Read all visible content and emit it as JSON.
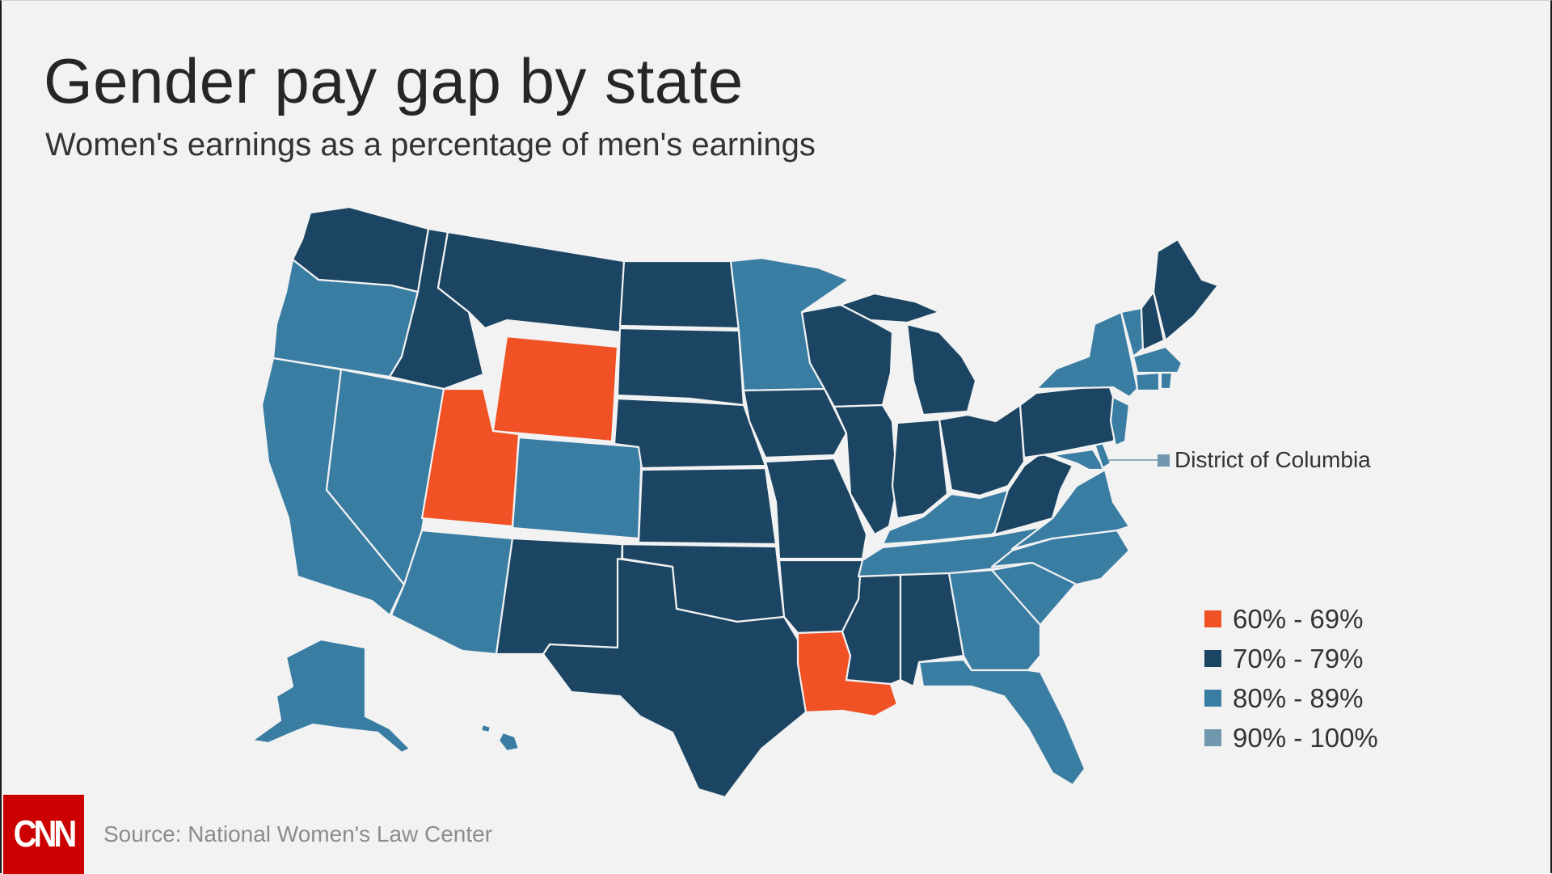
{
  "title": "Gender pay gap by state",
  "subtitle": "Women's earnings as a percentage of men's earnings",
  "colors": {
    "background": "#f2f2f2",
    "range_60_69": "#f05125",
    "range_70_79": "#1b4563",
    "range_80_89": "#3a7da3",
    "range_90_100": "#6f98ae",
    "cnn_red": "#cc0000"
  },
  "legend": [
    {
      "label": "60% - 69%",
      "color": "#f05125"
    },
    {
      "label": "70% - 79%",
      "color": "#1b4563"
    },
    {
      "label": "80% - 89%",
      "color": "#3a7da3"
    },
    {
      "label": "90% - 100%",
      "color": "#6f98ae"
    }
  ],
  "dc_callout": {
    "label": "District of Columbia",
    "range": "90% - 100%"
  },
  "states": {
    "WA": "70% - 79%",
    "OR": "80% - 89%",
    "CA": "80% - 89%",
    "NV": "80% - 89%",
    "ID": "70% - 79%",
    "MT": "70% - 79%",
    "WY": "60% - 69%",
    "UT": "60% - 69%",
    "AZ": "80% - 89%",
    "CO": "80% - 89%",
    "NM": "70% - 79%",
    "ND": "70% - 79%",
    "SD": "70% - 79%",
    "NE": "70% - 79%",
    "KS": "70% - 79%",
    "OK": "70% - 79%",
    "TX": "70% - 79%",
    "MN": "80% - 89%",
    "IA": "70% - 79%",
    "MO": "70% - 79%",
    "AR": "70% - 79%",
    "LA": "60% - 69%",
    "WI": "70% - 79%",
    "IL": "70% - 79%",
    "MI": "70% - 79%",
    "IN": "70% - 79%",
    "OH": "70% - 79%",
    "KY": "80% - 89%",
    "TN": "80% - 89%",
    "MS": "70% - 79%",
    "AL": "70% - 79%",
    "GA": "80% - 89%",
    "FL": "80% - 89%",
    "SC": "80% - 89%",
    "NC": "80% - 89%",
    "VA": "80% - 89%",
    "WV": "70% - 79%",
    "PA": "70% - 79%",
    "NY": "80% - 89%",
    "VT": "80% - 89%",
    "NH": "70% - 79%",
    "ME": "70% - 79%",
    "MA": "80% - 89%",
    "RI": "80% - 89%",
    "CT": "80% - 89%",
    "NJ": "80% - 89%",
    "DE": "80% - 89%",
    "MD": "80% - 89%",
    "AK": "80% - 89%",
    "HI": "80% - 89%"
  },
  "source": "Source: National Women's Law Center",
  "logo": "CNN"
}
